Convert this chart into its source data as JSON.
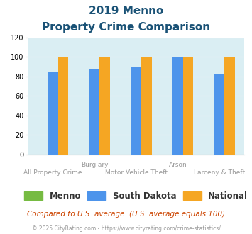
{
  "title_line1": "2019 Menno",
  "title_line2": "Property Crime Comparison",
  "menno": [
    0,
    0,
    0,
    0,
    0
  ],
  "south_dakota": [
    84,
    88,
    90,
    100,
    82
  ],
  "national": [
    100,
    100,
    100,
    100,
    100
  ],
  "bar_color_menno": "#76bb42",
  "bar_color_sd": "#4d94eb",
  "bar_color_national": "#f5a623",
  "ylim": [
    0,
    120
  ],
  "yticks": [
    0,
    20,
    40,
    60,
    80,
    100,
    120
  ],
  "title_color": "#1a5276",
  "plot_bg": "#daeef3",
  "footer_text": "Compared to U.S. average. (U.S. average equals 100)",
  "copyright_text": "© 2025 CityRating.com - https://www.cityrating.com/crime-statistics/",
  "legend_labels": [
    "Menno",
    "South Dakota",
    "National"
  ],
  "top_labels": [
    [
      1,
      "Burglary"
    ],
    [
      3,
      "Arson"
    ]
  ],
  "bot_labels": [
    [
      0,
      "All Property Crime"
    ],
    [
      2,
      "Motor Vehicle Theft"
    ],
    [
      4,
      "Larceny & Theft"
    ]
  ],
  "num_groups": 5,
  "bar_width": 0.25,
  "xlim": [
    -0.6,
    4.6
  ]
}
